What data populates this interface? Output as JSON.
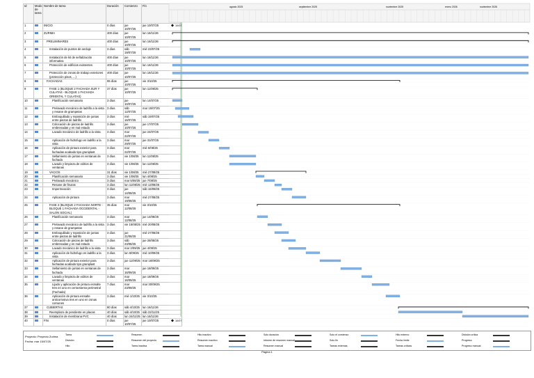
{
  "header": {
    "columns": [
      "Id",
      "Modo de tarea",
      "Nombre de tarea",
      "Duración",
      "Comienzo",
      "Fin"
    ]
  },
  "timescale": [
    "agosto 2025",
    "septiembre 2025",
    "noviembre 2025",
    "enero 2026",
    "noviembre 2026"
  ],
  "rows": [
    {
      "id": "1",
      "name": "INICIO",
      "duration": "0 días",
      "start": "jue 10/07/25",
      "finish": "jue 10/07/25",
      "label": "10/07"
    },
    {
      "id": "2",
      "name": "ZURIMA",
      "duration": "400 días",
      "start": "jue 10/07/25",
      "finish": "lun 16/11/26"
    },
    {
      "id": "3",
      "name": "PRELIMINARES",
      "duration": "400 días",
      "start": "jue 10/07/25",
      "finish": "lun 16/11/26"
    },
    {
      "id": "4",
      "name": "Instalación de puntos de anclaje",
      "duration": "3 días",
      "start": "sáb 19/07/25",
      "finish": "mié 23/07/25"
    },
    {
      "id": "5",
      "name": "Instalación de kit de señalización informativa",
      "duration": "400 días",
      "start": "jue 10/07/25",
      "finish": "lun 16/11/26"
    },
    {
      "id": "6",
      "name": "Protección de edificios existentes",
      "duration": "400 días",
      "start": "jue 10/07/25",
      "finish": "lun 16/11/26"
    },
    {
      "id": "7",
      "name": "Protección de zonas de trabajo exteriores (protección pisos, ...)",
      "duration": "400 días",
      "start": "jue 10/07/25",
      "finish": "lun 16/11/26"
    },
    {
      "id": "8",
      "name": "FACHADAS",
      "duration": "95 días",
      "start": "jue 10/07/25",
      "finish": "vie 3/10/25"
    },
    {
      "id": "9",
      "name": "FASE 1 (BLOQUE 2 FACHADA SUR Y CULATAS - BLOQUE 1 FACHADA ORIENTAL Y CULATAS)",
      "duration": "37 días",
      "start": "jue 10/07/25",
      "finish": "lun 11/08/25"
    },
    {
      "id": "10",
      "name": "Planificación semanario",
      "duration": "3 días",
      "start": "jue 10/07/25",
      "finish": "lun 14/07/25"
    },
    {
      "id": "11",
      "name": "Prelavado mecánico de ladrillo a la vista y resane de grampetas",
      "duration": "3 días",
      "start": "sáb 12/07/25",
      "finish": "mar 15/07/25"
    },
    {
      "id": "12",
      "name": "Emboquillado y reposición de juntas entre piezas de ladrillo",
      "duration": "3 días",
      "start": "mié 16/07/25",
      "finish": "sáb 19/07/25"
    },
    {
      "id": "13",
      "name": "Colocación de piezas de ladrillo embrenadas y en mal estado",
      "duration": "3 días",
      "start": "jue 10/07/25",
      "finish": "jue 17/07/25"
    },
    {
      "id": "14",
      "name": "Lavado mecánico de ladrillo a la vista",
      "duration": "3 días",
      "start": "mar 22/07/25",
      "finish": "jue 24/07/25"
    },
    {
      "id": "15",
      "name": "Aplicación de hidrofugo en ladrillo a la vista",
      "duration": "3 días",
      "start": "mar 29/07/25",
      "finish": "jue 31/07/25"
    },
    {
      "id": "16",
      "name": "Aplicación de pintura exterior para fachadas acabado tipo graniplast",
      "duration": "3 días",
      "start": "mar 22/07/25",
      "finish": "mié 6/08/25"
    },
    {
      "id": "17",
      "name": "Sellamiento de juntas en ventanas de fachada",
      "duration": "3 días",
      "start": "vie 1/08/25",
      "finish": "lun 11/08/25"
    },
    {
      "id": "18",
      "name": "Lavado y limpieza de vidrios de ventanas",
      "duration": "3 días",
      "start": "vie 1/08/25",
      "finish": "lun 11/08/25"
    },
    {
      "id": "19",
      "name": "VACIOS",
      "duration": "31 días",
      "start": "vie 1/08/25",
      "finish": "mié 27/08/25"
    },
    {
      "id": "20",
      "name": "Planificación semanario",
      "duration": "3 días",
      "start": "vie 1/08/25",
      "finish": "lun 4/08/25"
    },
    {
      "id": "21",
      "name": "Prelavado mecánico",
      "duration": "3 días",
      "start": "mar 5/08/25",
      "finish": "jue 7/08/25"
    },
    {
      "id": "22",
      "name": "Resane de fisuras",
      "duration": "3 días",
      "start": "lun 11/08/25",
      "finish": "mié 13/08/25"
    },
    {
      "id": "23",
      "name": "Impermeación",
      "duration": "3 días",
      "start": "jue 14/08/25",
      "finish": "sáb 16/08/25"
    },
    {
      "id": "24",
      "name": "Aplicación de pintura",
      "duration": "3 días",
      "start": "mar 19/08/25",
      "finish": "mié 27/08/25"
    },
    {
      "id": "25",
      "name": "FASE 2 (BLOQUE 2 FACHADA NORTE - BLOQUE 1 FACHADA OCCIDENTAL - SALON SOCIAL)",
      "duration": "35 días",
      "start": "mar 12/08/25",
      "finish": "vie 3/10/25"
    },
    {
      "id": "26",
      "name": "Planificación semanario",
      "duration": "3 días",
      "start": "mar 12/08/25",
      "finish": "jue 14/08/25"
    },
    {
      "id": "27",
      "name": "Prelavado mecánico de ladrillo a la vista y resane de grampetas",
      "duration": "3 días",
      "start": "vie 15/08/25",
      "finish": "mié 20/08/25"
    },
    {
      "id": "28",
      "name": "Emboquillado y reposición de juntas entre piezas de ladrillo",
      "duration": "3 días",
      "start": "jue 21/08/25",
      "finish": "mié 27/08/25"
    },
    {
      "id": "29",
      "name": "Colocación de piezas de ladrillo embrenadas y en mal estado",
      "duration": "3 días",
      "start": "sáb 23/08/25",
      "finish": "jue 28/08/25"
    },
    {
      "id": "30",
      "name": "Lavado mecánico de ladrillo a la vista",
      "duration": "3 días",
      "start": "mar 2/09/25",
      "finish": "jue 4/09/25"
    },
    {
      "id": "31",
      "name": "Aplicación de hidrofugo en ladrillo a la vista",
      "duration": "3 días",
      "start": "lun 8/09/25",
      "finish": "mié 10/09/25"
    },
    {
      "id": "32",
      "name": "Aplicación de pintura exterior para fachadas acabado tipo graniplast",
      "duration": "3 días",
      "start": "jue 11/09/25",
      "finish": "mar 16/09/25"
    },
    {
      "id": "33",
      "name": "Sellamiento de juntas en ventanas de fachada",
      "duration": "3 días",
      "start": "mar 16/09/25",
      "finish": "jue 18/09/25"
    },
    {
      "id": "34",
      "name": "Lavado y limpieza de vidrios de ventanas",
      "duration": "3 días",
      "start": "mar 16/09/25",
      "finish": "jue 18/09/25"
    },
    {
      "id": "35",
      "name": "Lijado y aplicación de pintura esmalte tres en uno en cerramiento perimetral (Fachada)",
      "duration": "7 días",
      "start": "mar 23/09/25",
      "finish": "mar 30/09/25"
    },
    {
      "id": "36",
      "name": "Aplicación de pintura esmalte anticorrosiva tres en uno en zonas comunes",
      "duration": "3 días",
      "start": "mié 1/10/25",
      "finish": "vie 3/10/25"
    },
    {
      "id": "37",
      "name": "CUBIERTAS",
      "duration": "80 días",
      "start": "sáb 4/10/25",
      "finish": "lun 16/11/26"
    },
    {
      "id": "38",
      "name": "Reemplazo de pendiente en placas",
      "duration": "40 días",
      "start": "sáb 4/10/25",
      "finish": "sáb 22/11/25"
    },
    {
      "id": "39",
      "name": "Instalación de membrana PVC",
      "duration": "40 días",
      "start": "lun 24/11/25",
      "finish": "lun 16/11/26"
    },
    {
      "id": "40",
      "name": "FIN",
      "duration": "0 días",
      "start": "jue 10/07/25",
      "finish": "jue 10/07/25",
      "label": "10/07"
    }
  ],
  "legend": {
    "project": "Proyecto: Proyecto Zurima",
    "date": "Fecha: mar 15/07/25",
    "items": [
      "Tarea",
      "División",
      "Hito",
      "Resumen",
      "Resumen del proyecto",
      "Tarea inactiva",
      "Hito inactivo",
      "Resumen inactivo",
      "Tarea manual",
      "Solo duración",
      "Informe de resumen manual",
      "Resumen manual",
      "Solo el comienzo",
      "Solo fin",
      "Tareas externas",
      "Hito externo",
      "Fecha límite",
      "Tareas críticas",
      "División crítica",
      "Progreso",
      "Progreso manual"
    ]
  },
  "footer": "Página 1"
}
